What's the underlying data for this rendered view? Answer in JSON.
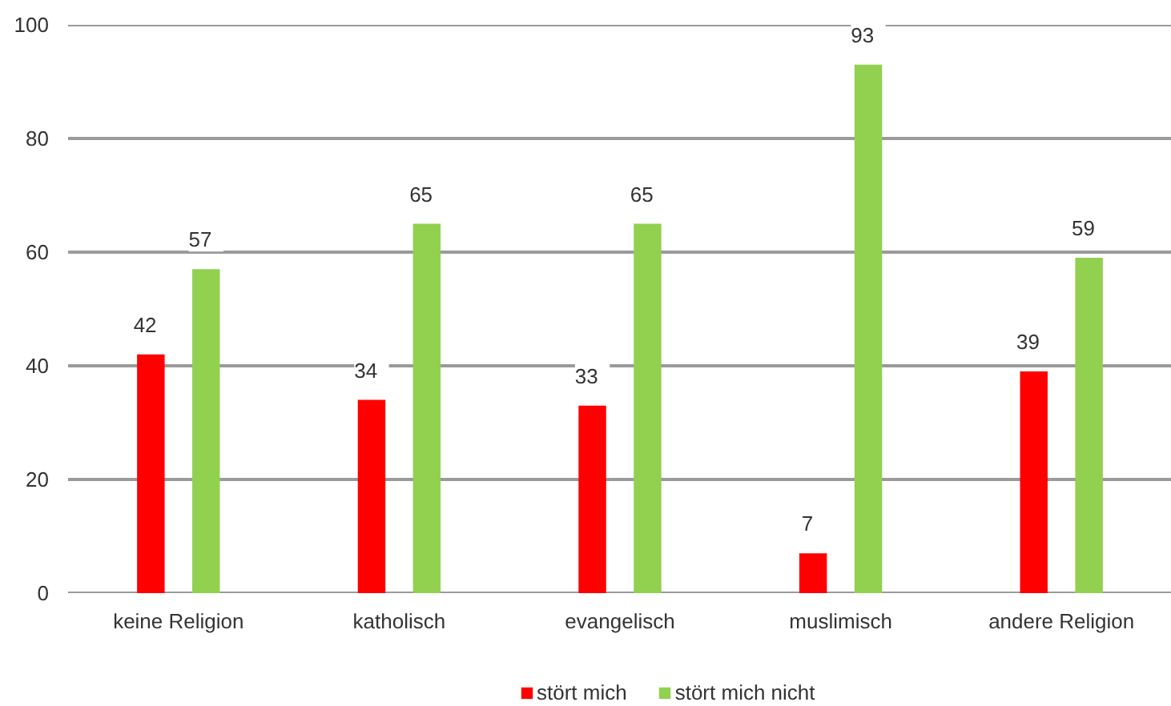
{
  "chart_data": {
    "type": "bar",
    "categories": [
      "keine Religion",
      "katholisch",
      "evangelisch",
      "muslimisch",
      "andere Religion"
    ],
    "series": [
      {
        "name": "stört mich",
        "color": "#ff0000",
        "values": [
          42,
          34,
          33,
          7,
          39
        ]
      },
      {
        "name": "stört mich nicht",
        "color": "#92d050",
        "values": [
          57,
          65,
          65,
          93,
          59
        ]
      }
    ],
    "ylim": [
      0,
      100
    ],
    "yticks": [
      0,
      20,
      40,
      60,
      80,
      100
    ],
    "grid": "y",
    "legend": "bottom",
    "data_labels": true
  }
}
